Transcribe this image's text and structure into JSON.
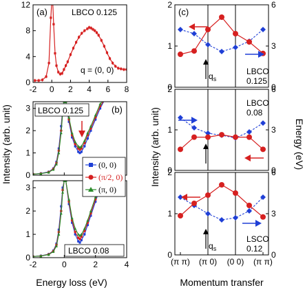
{
  "figure": {
    "left_ylabel": "Intensity (arb. unit)",
    "left_xlabel": "Energy loss (eV)",
    "right_ylabel_left": "Intensity (arb. unit)",
    "right_ylabel_right": "Energy (eV)",
    "right_xlabel": "Momentum transfer"
  },
  "chart_data": [
    {
      "id": "a",
      "type": "line",
      "panel_label": "(a)",
      "annotation": "LBCO 0.125",
      "q_label": "q = (0, 0)",
      "xlim": [
        -2,
        8
      ],
      "ylim": [
        0,
        12
      ],
      "x_ticks": [
        "-2",
        "0",
        "2",
        "4",
        "6",
        "8"
      ],
      "y_ticks": [
        "0",
        "4",
        "8",
        "12"
      ],
      "color": "#d62020",
      "series": [
        {
          "x": [
            -1.8,
            -1.4,
            -1.0,
            -0.6,
            -0.3,
            -0.1,
            0.0,
            0.1,
            0.2,
            0.35,
            0.5,
            0.7,
            0.9,
            1.1,
            1.3,
            1.5,
            1.7,
            2.0,
            2.3,
            2.6,
            2.9,
            3.2,
            3.5,
            3.8,
            4.0,
            4.2,
            4.4,
            4.6,
            4.8,
            5.0,
            5.3,
            5.6,
            5.9,
            6.2,
            6.5,
            6.8,
            7.1,
            7.4,
            7.7,
            8.0
          ],
          "y": [
            0.3,
            0.3,
            0.4,
            0.9,
            3.0,
            10.0,
            12.5,
            12.5,
            9.0,
            4.5,
            2.6,
            1.6,
            1.3,
            1.4,
            2.0,
            2.6,
            3.2,
            4.3,
            5.3,
            6.2,
            7.0,
            7.6,
            8.0,
            8.3,
            8.5,
            8.4,
            8.2,
            8.0,
            7.7,
            7.3,
            6.5,
            5.6,
            4.6,
            3.7,
            3.0,
            2.5,
            2.2,
            2.1,
            2.0,
            2.0
          ]
        }
      ]
    },
    {
      "id": "b",
      "type": "line",
      "panel_label": "(b)",
      "xlim": [
        -2,
        4
      ],
      "x_ticks": [
        "-2",
        "0",
        "2",
        "4"
      ],
      "legend": [
        {
          "label": "(0, 0)",
          "color": "#1f3fd6",
          "marker": "square"
        },
        {
          "label": "(π/2, 0)",
          "color": "#d62020",
          "marker": "circle"
        },
        {
          "label": "(π, 0)",
          "color": "#2a8a2a",
          "marker": "triangle"
        }
      ],
      "subpanels": [
        {
          "annotation": "LBCO 0.125",
          "ylim": [
            0,
            3.3
          ],
          "y_ticks": [
            "0",
            "1",
            "2",
            "3"
          ],
          "series": [
            {
              "name": "(0, 0)",
              "color": "#1f3fd6",
              "x": [
                -2.0,
                -1.5,
                -1.0,
                -0.7,
                -0.5,
                -0.35,
                -0.2,
                -0.1,
                0.0,
                0.1,
                0.3,
                0.5,
                0.7,
                0.9,
                1.0,
                1.1,
                1.3,
                1.5,
                1.7,
                2.0,
                2.3,
                2.6
              ],
              "y": [
                0.05,
                0.08,
                0.15,
                0.3,
                0.6,
                1.2,
                2.2,
                3.0,
                3.3,
                3.3,
                2.4,
                1.7,
                1.3,
                1.05,
                1.0,
                1.05,
                1.3,
                1.65,
                2.0,
                2.5,
                3.0,
                3.4
              ]
            },
            {
              "name": "(π/2, 0)",
              "color": "#d62020",
              "x": [
                -2.0,
                -1.5,
                -1.0,
                -0.7,
                -0.5,
                -0.35,
                -0.2,
                -0.1,
                0.0,
                0.1,
                0.3,
                0.5,
                0.7,
                0.9,
                1.0,
                1.1,
                1.3,
                1.5,
                1.7,
                2.0,
                2.3,
                2.6
              ],
              "y": [
                0.05,
                0.07,
                0.14,
                0.28,
                0.55,
                1.1,
                2.0,
                2.9,
                3.3,
                3.3,
                2.5,
                1.8,
                1.4,
                1.2,
                1.15,
                1.2,
                1.45,
                1.8,
                2.1,
                2.6,
                3.1,
                3.4
              ]
            },
            {
              "name": "(π, 0)",
              "color": "#2a8a2a",
              "x": [
                -2.0,
                -1.5,
                -1.0,
                -0.7,
                -0.5,
                -0.35,
                -0.2,
                -0.1,
                0.0,
                0.1,
                0.3,
                0.5,
                0.7,
                0.9,
                1.0,
                1.1,
                1.3,
                1.5,
                1.7,
                2.0,
                2.3,
                2.6
              ],
              "y": [
                0.05,
                0.07,
                0.13,
                0.26,
                0.5,
                1.0,
                1.9,
                2.8,
                3.3,
                3.3,
                2.6,
                1.9,
                1.5,
                1.3,
                1.25,
                1.3,
                1.55,
                1.9,
                2.2,
                2.7,
                3.2,
                3.4
              ]
            }
          ]
        },
        {
          "annotation": "LBCO 0.08",
          "ylim": [
            0,
            3.3
          ],
          "y_ticks": [
            "0",
            "1",
            "2",
            "3"
          ],
          "series": [
            {
              "name": "(0, 0)",
              "color": "#1f3fd6",
              "x": [
                -2.0,
                -1.5,
                -1.0,
                -0.7,
                -0.5,
                -0.35,
                -0.2,
                -0.1,
                0.0,
                0.1,
                0.3,
                0.5,
                0.7,
                0.9,
                1.0,
                1.1,
                1.3,
                1.5,
                1.7,
                2.0,
                2.3,
                2.6
              ],
              "y": [
                0.05,
                0.08,
                0.15,
                0.3,
                0.6,
                1.2,
                2.2,
                3.0,
                3.3,
                3.3,
                2.3,
                1.5,
                1.0,
                0.7,
                0.65,
                0.75,
                1.0,
                1.4,
                1.8,
                2.4,
                3.0,
                3.4
              ]
            },
            {
              "name": "(π/2, 0)",
              "color": "#d62020",
              "x": [
                -2.0,
                -1.5,
                -1.0,
                -0.7,
                -0.5,
                -0.35,
                -0.2,
                -0.1,
                0.0,
                0.1,
                0.3,
                0.5,
                0.7,
                0.9,
                1.0,
                1.1,
                1.3,
                1.5,
                1.7,
                2.0,
                2.3,
                2.6
              ],
              "y": [
                0.05,
                0.07,
                0.14,
                0.28,
                0.55,
                1.1,
                2.0,
                2.9,
                3.3,
                3.3,
                2.4,
                1.6,
                1.1,
                0.85,
                0.8,
                0.9,
                1.15,
                1.5,
                1.9,
                2.5,
                3.1,
                3.4
              ]
            },
            {
              "name": "(π, 0)",
              "color": "#2a8a2a",
              "x": [
                -2.0,
                -1.5,
                -1.0,
                -0.7,
                -0.5,
                -0.35,
                -0.2,
                -0.1,
                0.0,
                0.1,
                0.3,
                0.5,
                0.7,
                0.9,
                1.0,
                1.1,
                1.3,
                1.5,
                1.7,
                2.0,
                2.3,
                2.6
              ],
              "y": [
                0.05,
                0.07,
                0.13,
                0.26,
                0.5,
                1.0,
                1.9,
                2.8,
                3.3,
                3.3,
                2.5,
                1.7,
                1.25,
                1.0,
                0.95,
                1.0,
                1.25,
                1.6,
                2.0,
                2.6,
                3.1,
                3.4
              ]
            }
          ]
        }
      ]
    },
    {
      "id": "c",
      "type": "line",
      "panel_label": "(c)",
      "x_ticks": [
        "(π π)",
        "(π 0)",
        "(0 0)",
        "(π π)"
      ],
      "x_tick_positions": [
        0,
        1,
        2,
        3
      ],
      "vlines": [
        1,
        2
      ],
      "red_color": "#d62020",
      "blue_color": "#1f3fd6",
      "subpanels": [
        {
          "annotation_lines": [
            "LBCO",
            "0.125"
          ],
          "arrow_label": "q",
          "arrow_label_sub": "s",
          "left_ylim": [
            0,
            2
          ],
          "left_y_ticks": [
            "0",
            "1",
            "2"
          ],
          "right_ylim": [
            0,
            6
          ],
          "right_y_ticks": [
            "0",
            "3",
            "6"
          ],
          "intensity": {
            "x": [
              0,
              0.5,
              1.0,
              1.5,
              2.0,
              2.5,
              3.0
            ],
            "y": [
              0.8,
              0.88,
              1.4,
              1.7,
              1.3,
              1.1,
              0.82
            ]
          },
          "energy": {
            "x": [
              0,
              0.5,
              1.0,
              1.5,
              2.0,
              2.5,
              3.0
            ],
            "y": [
              4.2,
              3.9,
              3.1,
              2.6,
              2.9,
              3.35,
              4.2
            ]
          }
        },
        {
          "annotation_lines": [
            "LBCO",
            "0.08"
          ],
          "left_ylim": [
            0,
            2
          ],
          "left_y_ticks": [
            "0",
            "1",
            "2"
          ],
          "right_ylim": [
            0,
            6
          ],
          "right_y_ticks": [
            "0",
            "3",
            "6"
          ],
          "intensity": {
            "x": [
              0,
              0.5,
              1.0,
              1.5,
              2.0,
              2.5,
              3.0
            ],
            "y": [
              0.52,
              0.82,
              0.82,
              0.88,
              0.82,
              0.82,
              0.52
            ]
          },
          "energy": {
            "x": [
              0,
              0.5,
              1.0,
              1.5,
              2.0,
              2.5,
              3.0
            ],
            "y": [
              3.9,
              3.15,
              2.75,
              2.6,
              2.4,
              2.85,
              3.5
            ]
          }
        },
        {
          "annotation_lines": [
            "LSCO",
            "0.12"
          ],
          "arrow_label": "q",
          "arrow_label_sub": "s",
          "left_ylim": [
            0,
            2
          ],
          "left_y_ticks": [
            "0",
            "1",
            "2"
          ],
          "right_ylim": [
            0,
            6
          ],
          "right_y_ticks": [
            "0",
            "3",
            "6"
          ],
          "intensity": {
            "x": [
              0,
              0.5,
              1.0,
              1.5,
              2.0,
              2.5,
              3.0
            ],
            "y": [
              0.95,
              1.25,
              1.45,
              1.7,
              1.5,
              1.2,
              0.92
            ]
          },
          "energy": {
            "x": [
              0,
              0.5,
              1.0,
              1.5,
              2.0,
              2.5,
              3.0
            ],
            "y": [
              4.2,
              3.6,
              3.0,
              2.55,
              2.7,
              3.2,
              4.2
            ]
          }
        }
      ]
    }
  ]
}
